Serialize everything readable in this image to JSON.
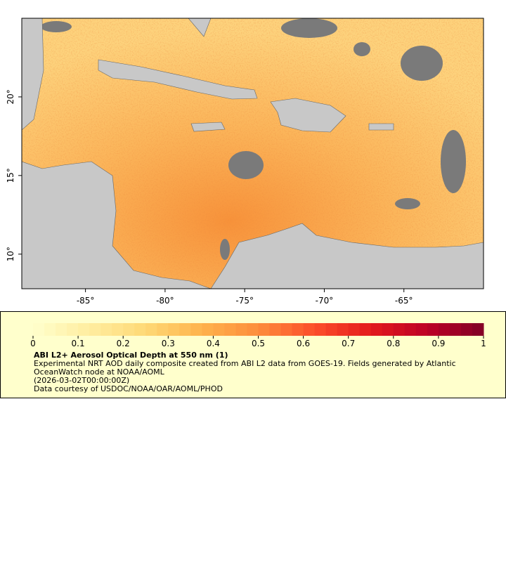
{
  "map": {
    "xlim": [
      -89,
      -60
    ],
    "ylim": [
      7.8,
      25
    ],
    "xticks": [
      {
        "value": -85,
        "label": "-85°"
      },
      {
        "value": -80,
        "label": "-80°"
      },
      {
        "value": -75,
        "label": "-75°"
      },
      {
        "value": -70,
        "label": "-70°"
      },
      {
        "value": -65,
        "label": "-65°"
      }
    ],
    "yticks": [
      {
        "value": 10,
        "label": "10°"
      },
      {
        "value": 15,
        "label": "15°"
      },
      {
        "value": 20,
        "label": "20°"
      }
    ],
    "colorbar": {
      "lim": [
        0,
        1
      ],
      "ticks": [
        0,
        0.1,
        0.2,
        0.3,
        0.4,
        0.5,
        0.6,
        0.7,
        0.8,
        0.9,
        1
      ],
      "colors": [
        "#ffffcc",
        "#ffeda0",
        "#fed976",
        "#feb24c",
        "#fd8d3c",
        "#fc4e2a",
        "#e31a1c",
        "#bd0026",
        "#800026"
      ]
    },
    "title": "ABI L2+ Aerosol Optical Depth at 550 nm (1)",
    "description": "Experimental NRT AOD daily composite created from ABI L2 data from GOES-19. Fields generated by Atlantic OceanWatch node at NOAA/AOML",
    "date": "(2026-03-02T00:00:00Z)",
    "credit": "Data courtesy of USDOC/NOAA/OAR/AOML/PHOD"
  }
}
